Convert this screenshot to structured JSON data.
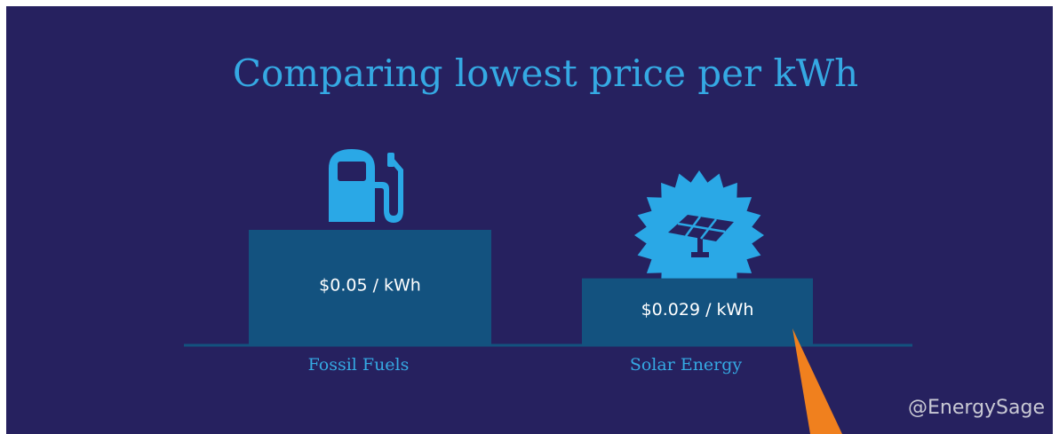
{
  "chart_data": {
    "type": "bar",
    "title": "Comparing lowest price per kWh",
    "categories": [
      "Fossil Fuels",
      "Solar Energy"
    ],
    "values": [
      0.05,
      0.029
    ],
    "value_labels": [
      "$0.05 / kWh",
      "$0.029 / kWh"
    ],
    "color": "#13527f",
    "watermark": "@EnergySage"
  }
}
